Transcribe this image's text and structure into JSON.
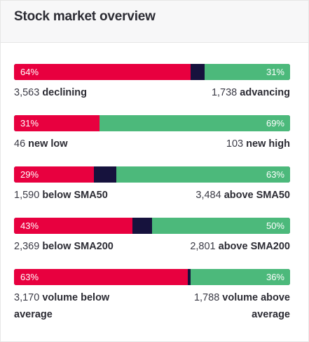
{
  "header": {
    "title": "Stock market overview"
  },
  "metrics": [
    {
      "left_pct": "64%",
      "right_pct": "31%",
      "neg": 0.64,
      "pos": 0.31,
      "left_count": "3,563",
      "left_label": "declining",
      "right_count": "1,738",
      "right_label": "advancing"
    },
    {
      "left_pct": "31%",
      "right_pct": "69%",
      "neg": 0.31,
      "pos": 0.69,
      "left_count": "46",
      "left_label": "new low",
      "right_count": "103",
      "right_label": "new high"
    },
    {
      "left_pct": "29%",
      "right_pct": "63%",
      "neg": 0.29,
      "pos": 0.63,
      "left_count": "1,590",
      "left_label": "below SMA50",
      "right_count": "3,484",
      "right_label": "above SMA50"
    },
    {
      "left_pct": "43%",
      "right_pct": "50%",
      "neg": 0.43,
      "pos": 0.5,
      "left_count": "2,369",
      "left_label": "below SMA200",
      "right_count": "2,801",
      "right_label": "above SMA200"
    },
    {
      "left_pct": "63%",
      "right_pct": "36%",
      "neg": 0.63,
      "pos": 0.36,
      "left_count": "3,170",
      "left_label": "volume below average",
      "right_count": "1,788",
      "right_label": "volume above average"
    }
  ],
  "colors": {
    "negative": "#e8003f",
    "neutral": "#16123d",
    "positive": "#4cb97b"
  }
}
